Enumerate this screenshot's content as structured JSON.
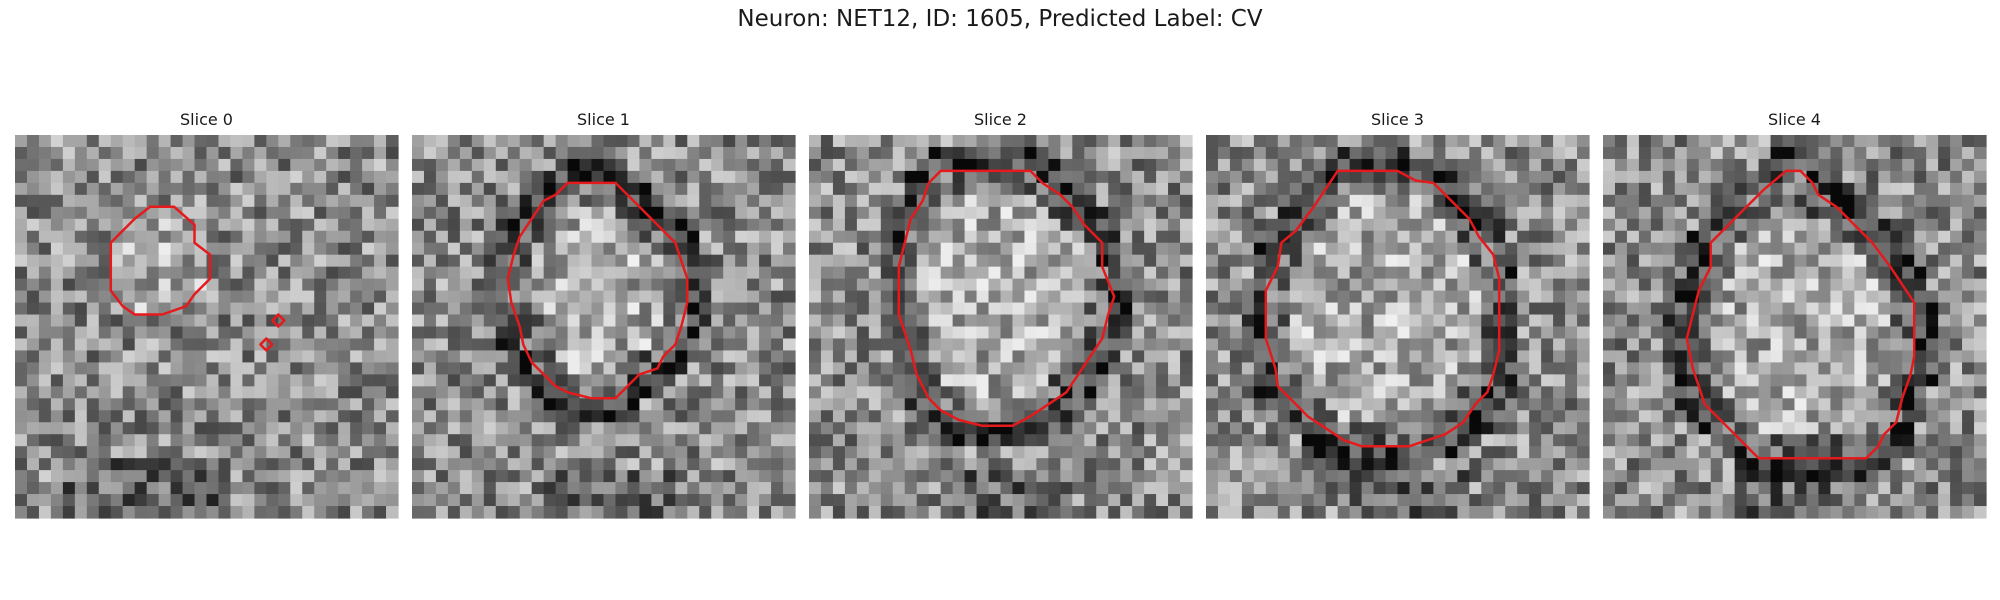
{
  "figure": {
    "title": "Neuron: NET12, ID: 1605, Predicted Label: CV",
    "contour_color": "#e41a1c"
  },
  "panels": [
    {
      "title": "Slice 0"
    },
    {
      "title": "Slice 1"
    },
    {
      "title": "Slice 2"
    },
    {
      "title": "Slice 3"
    },
    {
      "title": "Slice 4"
    }
  ]
}
